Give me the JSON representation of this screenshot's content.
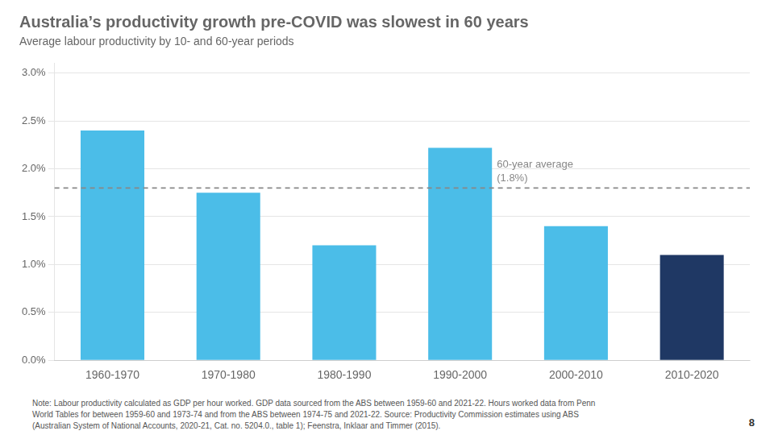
{
  "chart_data": {
    "type": "bar",
    "title": "Australia’s productivity growth pre-COVID was slowest in 60 years",
    "subtitle": "Average labour productivity by 10- and 60-year periods",
    "categories": [
      "1960-1970",
      "1970-1980",
      "1980-1990",
      "1990-2000",
      "2000-2010",
      "2010-2020"
    ],
    "values": [
      0.024,
      0.0175,
      0.012,
      0.0222,
      0.014,
      0.011
    ],
    "colors": [
      "#4BBDE8",
      "#4BBDE8",
      "#4BBDE8",
      "#4BBDE8",
      "#4BBDE8",
      "#1F3864"
    ],
    "avg_line": {
      "value": 0.018,
      "label": "60-year average\n(1.8%)",
      "color": "#888888",
      "line_style": "dashed"
    },
    "ylim": [
      0,
      0.031
    ],
    "yticks": [
      {
        "value": 0.0,
        "label": "0.0%"
      },
      {
        "value": 0.005,
        "label": "0.5%"
      },
      {
        "value": 0.01,
        "label": "1.0%"
      },
      {
        "value": 0.015,
        "label": "1.5%"
      },
      {
        "value": 0.02,
        "label": "2.0%"
      },
      {
        "value": 0.025,
        "label": "2.5%"
      },
      {
        "value": 0.03,
        "label": "3.0%"
      }
    ],
    "grid": true,
    "note": "Note: Labour productivity calculated as GDP per hour worked. GDP data sourced from the ABS between 1959-60 and 2021-22. Hours worked data from Penn\nWorld Tables for between 1959-60 and 1973-74 and from the ABS between 1974-75 and 2021-22. Source: Productivity Commission estimates using ABS\n(Australian System of National Accounts, 2020-21, Cat. no. 5204.0., table 1); Feenstra, Inklaar and Timmer (2015).",
    "page_number": "8"
  }
}
